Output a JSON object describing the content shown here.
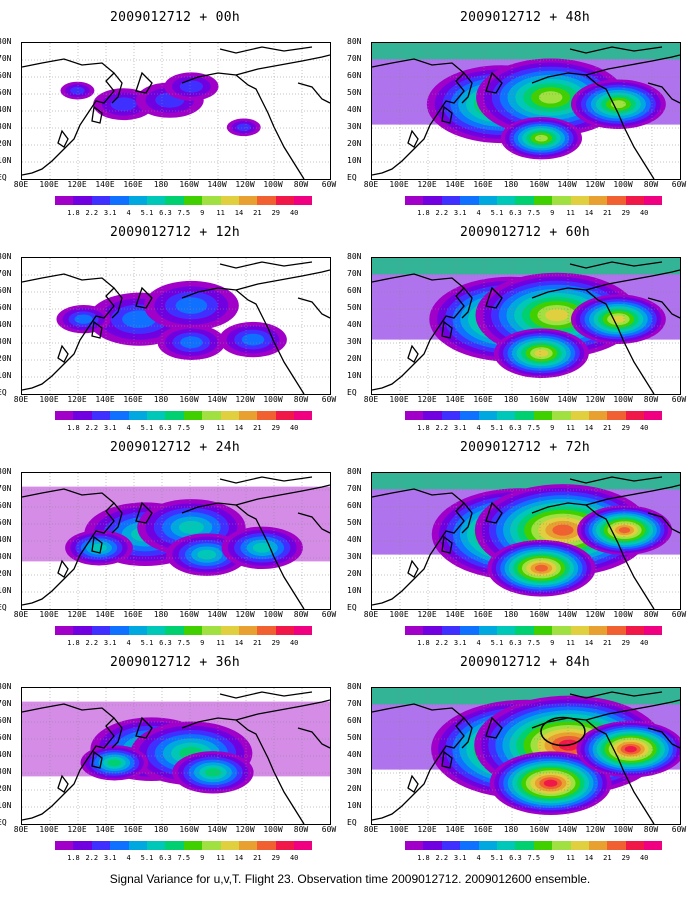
{
  "panels": [
    {
      "title": "2009012712 + 00h",
      "intensity": 0
    },
    {
      "title": "2009012712 + 48h",
      "intensity": 4
    },
    {
      "title": "2009012712 + 12h",
      "intensity": 1
    },
    {
      "title": "2009012712 + 60h",
      "intensity": 5
    },
    {
      "title": "2009012712 + 24h",
      "intensity": 2
    },
    {
      "title": "2009012712 + 72h",
      "intensity": 6
    },
    {
      "title": "2009012712 + 36h",
      "intensity": 3
    },
    {
      "title": "2009012712 + 84h",
      "intensity": 7
    }
  ],
  "lat_labels": [
    "80N",
    "70N",
    "60N",
    "50N",
    "40N",
    "30N",
    "20N",
    "10N",
    "EQ"
  ],
  "lon_labels": [
    "80E",
    "100E",
    "120E",
    "140E",
    "160E",
    "180",
    "160W",
    "140W",
    "120W",
    "100W",
    "80W",
    "60W"
  ],
  "colorbar": {
    "labels": [
      "1.8",
      "2.2",
      "3.1",
      "4",
      "5.1",
      "6.3",
      "7.5",
      "9",
      "11",
      "14",
      "21",
      "29",
      "40"
    ],
    "colors": [
      "#a000c8",
      "#7000e0",
      "#4030ff",
      "#1070ff",
      "#00a8e0",
      "#00c8b8",
      "#00d070",
      "#40d000",
      "#a0e040",
      "#e0d040",
      "#e8a030",
      "#f06030",
      "#f01848",
      "#f00080"
    ]
  },
  "footer": "Signal Variance for u,v,T. Flight 23. Observation time 2009012712. 2009012600 ensemble."
}
